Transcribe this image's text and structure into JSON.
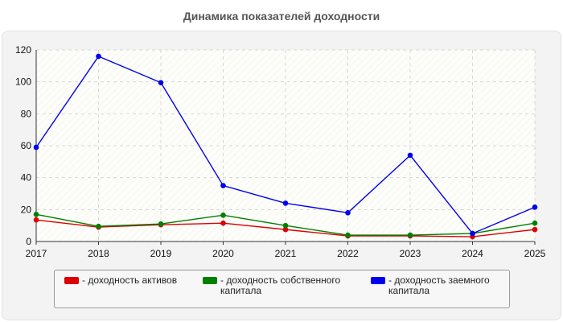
{
  "chart_data": {
    "type": "line",
    "title": "Динамика показателей доходности",
    "xlabel": "",
    "ylabel": "",
    "x": [
      "2017",
      "2018",
      "2019",
      "2020",
      "2021",
      "2022",
      "2023",
      "2024",
      "2025"
    ],
    "ylim": [
      0,
      120
    ],
    "yticks": [
      0,
      20,
      40,
      60,
      80,
      100,
      120
    ],
    "grid": true,
    "legend_position": "bottom",
    "series": [
      {
        "name": "- доходность активов",
        "color": "#dd0000",
        "values": [
          13.5,
          9,
          10.5,
          11.5,
          7.5,
          3.5,
          3.5,
          3,
          7.5
        ]
      },
      {
        "name": "- доходность собственного капитала",
        "color": "#008000",
        "values": [
          17,
          9.5,
          11,
          16.5,
          10,
          4,
          4,
          5,
          11.5
        ]
      },
      {
        "name": "- доходность заемного капитала",
        "color": "#0000ee",
        "values": [
          59,
          116,
          99.5,
          35,
          24,
          18,
          54,
          5,
          21.5
        ]
      }
    ]
  }
}
